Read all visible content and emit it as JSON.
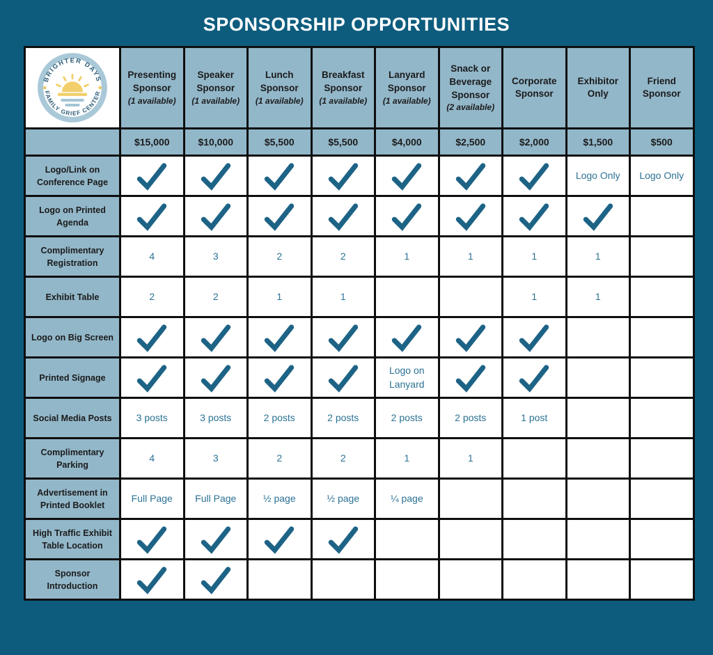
{
  "title": "SPONSORSHIP OPPORTUNITIES",
  "logo": {
    "top_text": "BRIGHTER DAYS",
    "bottom_text": "FAMILY GRIEF CENTER"
  },
  "colors": {
    "background": "#0d5c7e",
    "header_cell": "#92b7c9",
    "grid_border": "#0e0e0e",
    "check": "#1d6386",
    "cell_text": "#2b7294",
    "dark_text": "#1b1b1b",
    "title_text": "#ffffff",
    "logo_ring": "#a9c8d8",
    "logo_text": "#2d5d77",
    "sun_yellow": "#f2cf6b",
    "water_blue": "#a5c6d6"
  },
  "columns": [
    {
      "name": "Presenting Sponsor",
      "availability": "(1 available)",
      "price": "$15,000"
    },
    {
      "name": "Speaker Sponsor",
      "availability": "(1 available)",
      "price": "$10,000"
    },
    {
      "name": "Lunch Sponsor",
      "availability": "(1 available)",
      "price": "$5,500"
    },
    {
      "name": "Breakfast Sponsor",
      "availability": "(1 available)",
      "price": "$5,500"
    },
    {
      "name": "Lanyard Sponsor",
      "availability": "(1 available)",
      "price": "$4,000"
    },
    {
      "name": "Snack or Beverage Sponsor",
      "availability": "(2 available)",
      "price": "$2,500"
    },
    {
      "name": "Corporate Sponsor",
      "availability": "",
      "price": "$2,000"
    },
    {
      "name": "Exhibitor Only",
      "availability": "",
      "price": "$1,500"
    },
    {
      "name": "Friend Sponsor",
      "availability": "",
      "price": "$500"
    }
  ],
  "rows": [
    {
      "label": "Logo/Link on Conference Page",
      "cells": [
        "check",
        "check",
        "check",
        "check",
        "check",
        "check",
        "check",
        "Logo Only",
        "Logo Only"
      ]
    },
    {
      "label": "Logo on Printed Agenda",
      "cells": [
        "check",
        "check",
        "check",
        "check",
        "check",
        "check",
        "check",
        "check",
        ""
      ]
    },
    {
      "label": "Complimentary Registration",
      "cells": [
        "4",
        "3",
        "2",
        "2",
        "1",
        "1",
        "1",
        "1",
        ""
      ]
    },
    {
      "label": "Exhibit Table",
      "cells": [
        "2",
        "2",
        "1",
        "1",
        "",
        "",
        "1",
        "1",
        ""
      ]
    },
    {
      "label": "Logo on Big Screen",
      "cells": [
        "check",
        "check",
        "check",
        "check",
        "check",
        "check",
        "check",
        "",
        ""
      ]
    },
    {
      "label": "Printed Signage",
      "cells": [
        "check",
        "check",
        "check",
        "check",
        "Logo on Lanyard",
        "check",
        "check",
        "",
        ""
      ]
    },
    {
      "label": "Social Media Posts",
      "cells": [
        "3 posts",
        "3 posts",
        "2 posts",
        "2 posts",
        "2 posts",
        "2 posts",
        "1 post",
        "",
        ""
      ]
    },
    {
      "label": "Complimentary Parking",
      "cells": [
        "4",
        "3",
        "2",
        "2",
        "1",
        "1",
        "",
        "",
        ""
      ]
    },
    {
      "label": "Advertisement in Printed Booklet",
      "cells": [
        "Full Page",
        "Full Page",
        "½ page",
        "½ page",
        "¼ page",
        "",
        "",
        "",
        ""
      ]
    },
    {
      "label": "High Traffic Exhibit Table Location",
      "cells": [
        "check",
        "check",
        "check",
        "check",
        "",
        "",
        "",
        "",
        ""
      ]
    },
    {
      "label": "Sponsor Introduction",
      "cells": [
        "check",
        "check",
        "",
        "",
        "",
        "",
        "",
        "",
        ""
      ]
    }
  ]
}
